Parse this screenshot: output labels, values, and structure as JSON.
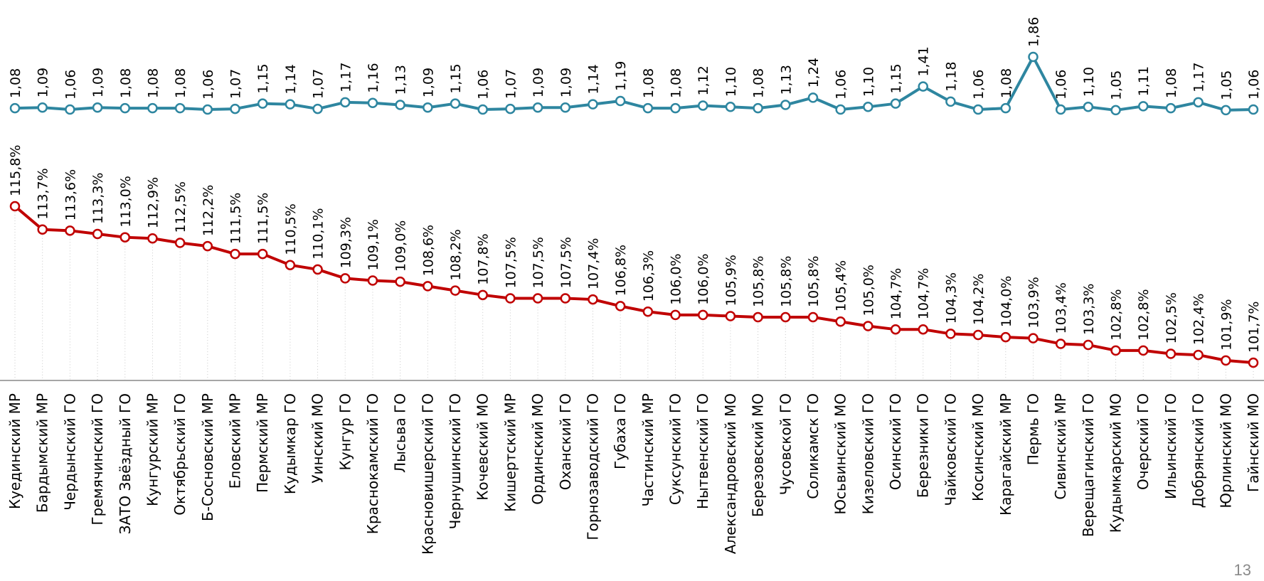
{
  "chart_data": {
    "type": "line",
    "categories": [
      "Куединский МР",
      "Бардымский МР",
      "Чердынский ГО",
      "Гремячинский ГО",
      "ЗАТО Звёздный ГО",
      "Кунгурский МР",
      "Октябрьский ГО",
      "Б-Сосновский МР",
      "Еловский МР",
      "Пермский МР",
      "Кудымкар ГО",
      "Уинский МО",
      "Кунгур ГО",
      "Краснокамский ГО",
      "Лысьва ГО",
      "Красновишерский ГО",
      "Чернушинский ГО",
      "Кочевский МО",
      "Кишертский МР",
      "Ординский МО",
      "Оханский ГО",
      "Горнозаводский ГО",
      "Губаха ГО",
      "Частинский МР",
      "Суксунский ГО",
      "Нытвенский ГО",
      "Александровский МО",
      "Березовский МО",
      "Чусовской ГО",
      "Соликамск ГО",
      "Юсьвинский МО",
      "Кизеловский ГО",
      "Осинский ГО",
      "Березники ГО",
      "Чайковский ГО",
      "Косинский МО",
      "Карагайский МР",
      "Пермь ГО",
      "Сивинский МР",
      "Верещагинский ГО",
      "Кудымкарский МО",
      "Очерский ГО",
      "Ильинский ГО",
      "Добрянский ГО",
      "Юрлинский МО",
      "Гайнский МО"
    ],
    "series": [
      {
        "color": "#2e86a0",
        "values": [
          1.08,
          1.09,
          1.06,
          1.09,
          1.08,
          1.08,
          1.08,
          1.06,
          1.07,
          1.15,
          1.14,
          1.07,
          1.17,
          1.16,
          1.13,
          1.09,
          1.15,
          1.06,
          1.07,
          1.09,
          1.09,
          1.14,
          1.19,
          1.08,
          1.08,
          1.12,
          1.1,
          1.08,
          1.13,
          1.24,
          1.06,
          1.1,
          1.15,
          1.41,
          1.18,
          1.06,
          1.08,
          1.86,
          1.06,
          1.1,
          1.05,
          1.11,
          1.08,
          1.17,
          1.05,
          1.06
        ],
        "labels": [
          "1,08",
          "1,09",
          "1,06",
          "1,09",
          "1,08",
          "1,08",
          "1,08",
          "1,06",
          "1,07",
          "1,15",
          "1,14",
          "1,07",
          "1,17",
          "1,16",
          "1,13",
          "1,09",
          "1,15",
          "1,06",
          "1,07",
          "1,09",
          "1,09",
          "1,14",
          "1,19",
          "1,08",
          "1,08",
          "1,12",
          "1,10",
          "1,08",
          "1,13",
          "1,24",
          "1,06",
          "1,10",
          "1,15",
          "1,41",
          "1,18",
          "1,06",
          "1,08",
          "1,86",
          "1,06",
          "1,10",
          "1,05",
          "1,11",
          "1,08",
          "1,17",
          "1,05",
          "1,06"
        ]
      },
      {
        "color": "#c00000",
        "values": [
          115.8,
          113.7,
          113.6,
          113.3,
          113.0,
          112.9,
          112.5,
          112.2,
          111.5,
          111.5,
          110.5,
          110.1,
          109.3,
          109.1,
          109.0,
          108.6,
          108.2,
          107.8,
          107.5,
          107.5,
          107.5,
          107.4,
          106.8,
          106.3,
          106.0,
          106.0,
          105.9,
          105.8,
          105.8,
          105.8,
          105.4,
          105.0,
          104.7,
          104.7,
          104.3,
          104.2,
          104.0,
          103.9,
          103.4,
          103.3,
          102.8,
          102.8,
          102.5,
          102.4,
          101.9,
          101.7
        ],
        "labels": [
          "115,8%",
          "113,7%",
          "113,6%",
          "113,3%",
          "113,0%",
          "112,9%",
          "112,5%",
          "112,2%",
          "111,5%",
          "111,5%",
          "110,5%",
          "110,1%",
          "109,3%",
          "109,1%",
          "109,0%",
          "108,6%",
          "108,2%",
          "107,8%",
          "107,5%",
          "107,5%",
          "107,5%",
          "107,4%",
          "106,8%",
          "106,3%",
          "106,0%",
          "106,0%",
          "105,9%",
          "105,8%",
          "105,8%",
          "105,8%",
          "105,4%",
          "105,0%",
          "104,7%",
          "104,7%",
          "104,3%",
          "104,2%",
          "104,0%",
          "103,9%",
          "103,4%",
          "103,3%",
          "102,8%",
          "102,8%",
          "102,5%",
          "102,4%",
          "101,9%",
          "101,7%"
        ]
      }
    ],
    "axis_color": "#a6a6a6",
    "gridlines": "vertical-dotted"
  },
  "page": {
    "number": "13"
  }
}
